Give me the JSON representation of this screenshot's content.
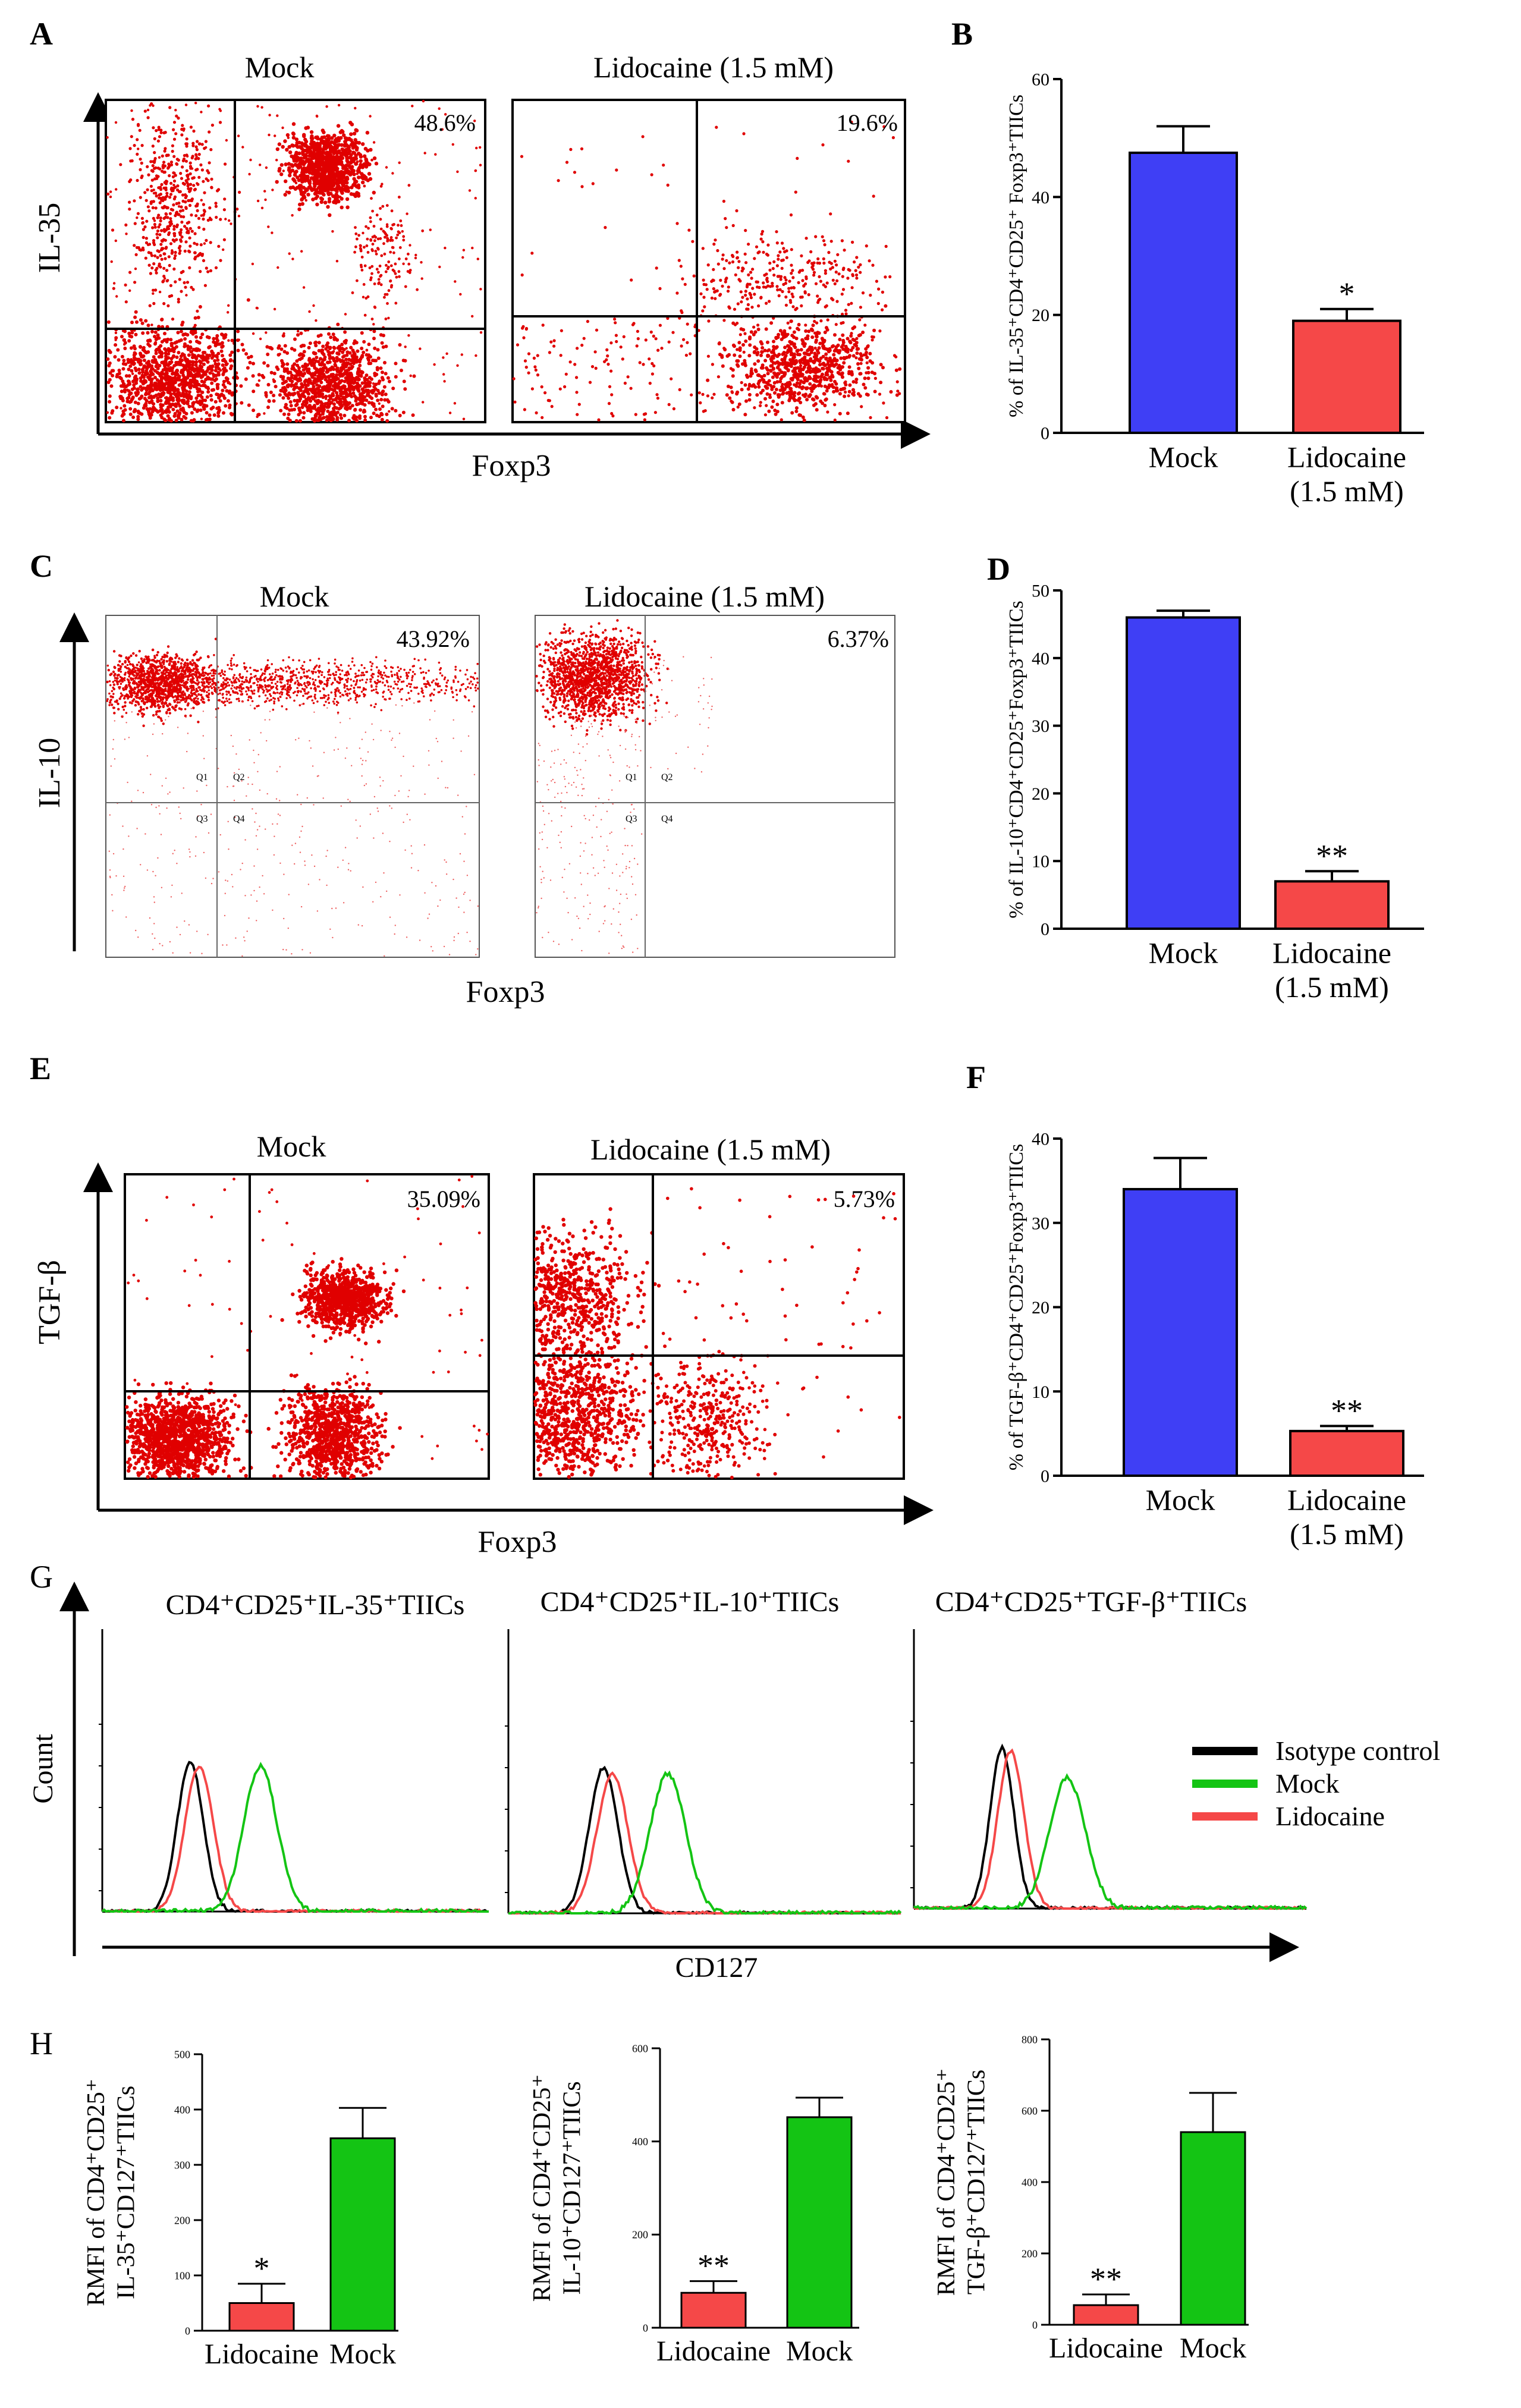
{
  "colors": {
    "mock_blue": "#3f3ff5",
    "lido_red": "#f54848",
    "green": "#14c414",
    "dot_red": "#e00000",
    "black": "#000000"
  },
  "panelA": {
    "letter": "A",
    "ylabel": "IL-35",
    "xlabel": "Foxp3",
    "plots": [
      {
        "title": "Mock",
        "pct": "48.6%"
      },
      {
        "title": "Lidocaine (1.5 mM)",
        "pct": "19.6%"
      }
    ]
  },
  "panelC": {
    "letter": "C",
    "ylabel": "IL-10",
    "xlabel": "Foxp3",
    "plots": [
      {
        "title": "Mock",
        "pct": "43.92%"
      },
      {
        "title": "Lidocaine (1.5 mM)",
        "pct": "6.37%"
      }
    ],
    "quadrants": [
      "Q1",
      "Q2",
      "Q3",
      "Q4"
    ]
  },
  "panelE": {
    "letter": "E",
    "ylabel": "TGF-β",
    "xlabel": "Foxp3",
    "plots": [
      {
        "title": "Mock",
        "pct": "35.09%"
      },
      {
        "title": "Lidocaine (1.5 mM)",
        "pct": "5.73%"
      }
    ]
  },
  "panelG": {
    "letter": "G",
    "ylabel": "Count",
    "xlabel": "CD127",
    "titles": [
      "CD4⁺CD25⁺IL-35⁺TIICs",
      "CD4⁺CD25⁺IL-10⁺TIICs",
      "CD4⁺CD25⁺TGF-β⁺TIICs"
    ],
    "legend": [
      {
        "label": "Isotype control",
        "color": "#000000"
      },
      {
        "label": "Mock",
        "color": "#14c414"
      },
      {
        "label": "Lidocaine",
        "color": "#f54848"
      }
    ]
  },
  "panelH": {
    "letter": "H"
  },
  "chart_data": [
    {
      "panel": "B",
      "type": "bar",
      "ylabel": "% of IL-35⁺CD4⁺CD25⁺ Foxp3⁺TIICs",
      "categories": [
        "Mock",
        "Lidocaine (1.5 mM)"
      ],
      "values": [
        47.5,
        19
      ],
      "errors": [
        4.5,
        2
      ],
      "annotations": [
        "",
        "*"
      ],
      "ylim": [
        0,
        60
      ],
      "yticks": [
        0,
        20,
        40,
        60
      ]
    },
    {
      "panel": "D",
      "type": "bar",
      "ylabel": "% of IL-10⁺CD4⁺CD25⁺Foxp3⁺TIICs",
      "categories": [
        "Mock",
        "Lidocaine (1.5 mM)"
      ],
      "values": [
        46,
        7
      ],
      "errors": [
        1,
        1.5
      ],
      "annotations": [
        "",
        "**"
      ],
      "ylim": [
        0,
        50
      ],
      "yticks": [
        0,
        10,
        20,
        30,
        40,
        50
      ]
    },
    {
      "panel": "F",
      "type": "bar",
      "ylabel": "% of TGF-β⁺CD4⁺CD25⁺Foxp3⁺TIICs",
      "categories": [
        "Mock",
        "Lidocaine (1.5 mM)"
      ],
      "values": [
        34,
        5.3
      ],
      "errors": [
        3.7,
        0.6
      ],
      "annotations": [
        "",
        "**"
      ],
      "ylim": [
        0,
        40
      ],
      "yticks": [
        0,
        10,
        20,
        30,
        40
      ]
    },
    {
      "panel": "H1",
      "type": "bar",
      "ylabel": "RMFI of CD4⁺CD25⁺ IL-35⁺CD127⁺TIICs",
      "categories": [
        "Lidocaine",
        "Mock"
      ],
      "values": [
        50,
        348
      ],
      "errors": [
        35,
        55
      ],
      "annotations": [
        "*",
        ""
      ],
      "ylim": [
        0,
        500
      ],
      "yticks": [
        0,
        100,
        200,
        300,
        400,
        500
      ]
    },
    {
      "panel": "H2",
      "type": "bar",
      "ylabel": "RMFI of CD4⁺CD25⁺ IL-10⁺CD127⁺TIICs",
      "categories": [
        "Lidocaine",
        "Mock"
      ],
      "values": [
        75,
        452
      ],
      "errors": [
        25,
        42
      ],
      "annotations": [
        "**",
        ""
      ],
      "ylim": [
        0,
        600
      ],
      "yticks": [
        0,
        200,
        400,
        600
      ]
    },
    {
      "panel": "H3",
      "type": "bar",
      "ylabel": "RMFI of CD4⁺CD25⁺ TGF-β⁺CD127⁺TIICs",
      "categories": [
        "Lidocaine",
        "Mock"
      ],
      "values": [
        55,
        540
      ],
      "errors": [
        30,
        110
      ],
      "annotations": [
        "**",
        ""
      ],
      "ylim": [
        0,
        800
      ],
      "yticks": [
        0,
        200,
        400,
        600,
        800
      ]
    }
  ]
}
